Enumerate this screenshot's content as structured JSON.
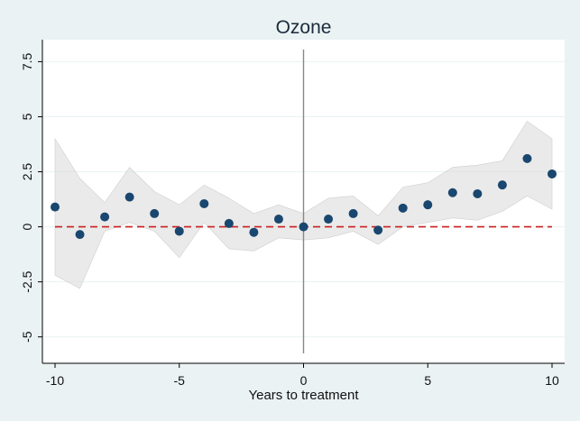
{
  "chart_data": {
    "type": "scatter",
    "title": "Ozone",
    "xlabel": "Years to treatment",
    "ylabel": "",
    "xlim": [
      -10,
      10
    ],
    "ylim": [
      -6.2,
      8.5
    ],
    "xticks": [
      -10,
      -5,
      0,
      5,
      10
    ],
    "xtick_labels": [
      "-10",
      "-5",
      "0",
      "5",
      "10"
    ],
    "yticks": [
      -5,
      -2.5,
      0,
      2.5,
      5,
      7.5
    ],
    "ytick_labels": [
      "-5",
      "-2.5",
      "0",
      "2.5",
      "5",
      "7.5"
    ],
    "grid": true,
    "reference_line": {
      "y": 0,
      "style": "dashed",
      "color": "#cc1f1f"
    },
    "treatment_line": {
      "x": 0,
      "color": "#888888"
    },
    "x": [
      -10,
      -9,
      -8,
      -7,
      -6,
      -5,
      -4,
      -3,
      -2,
      -1,
      0,
      1,
      2,
      3,
      4,
      5,
      6,
      7,
      8,
      9,
      10
    ],
    "y": [
      0.9,
      -0.35,
      0.45,
      1.35,
      0.6,
      -0.2,
      1.05,
      0.15,
      -0.25,
      0.35,
      0.0,
      0.35,
      0.6,
      -0.15,
      0.85,
      1.0,
      1.55,
      1.5,
      1.9,
      3.1,
      2.4
    ],
    "ci_lower": [
      -2.2,
      -2.8,
      -0.2,
      0.2,
      -0.2,
      -1.4,
      0.2,
      -1.0,
      -1.1,
      -0.5,
      -0.6,
      -0.5,
      -0.2,
      -0.8,
      0.0,
      0.2,
      0.4,
      0.3,
      0.7,
      1.4,
      0.8
    ],
    "ci_upper": [
      4.0,
      2.2,
      1.1,
      2.7,
      1.6,
      1.0,
      1.9,
      1.3,
      0.6,
      1.0,
      0.6,
      1.3,
      1.4,
      0.5,
      1.8,
      2.0,
      2.7,
      2.8,
      3.0,
      4.8,
      4.0
    ],
    "colors": {
      "background": "#eaf2f3",
      "plot_area": "#ffffff",
      "point": "#1a476f",
      "ci_band": "#d8d8d8",
      "grid": "#eaf2f3"
    }
  }
}
